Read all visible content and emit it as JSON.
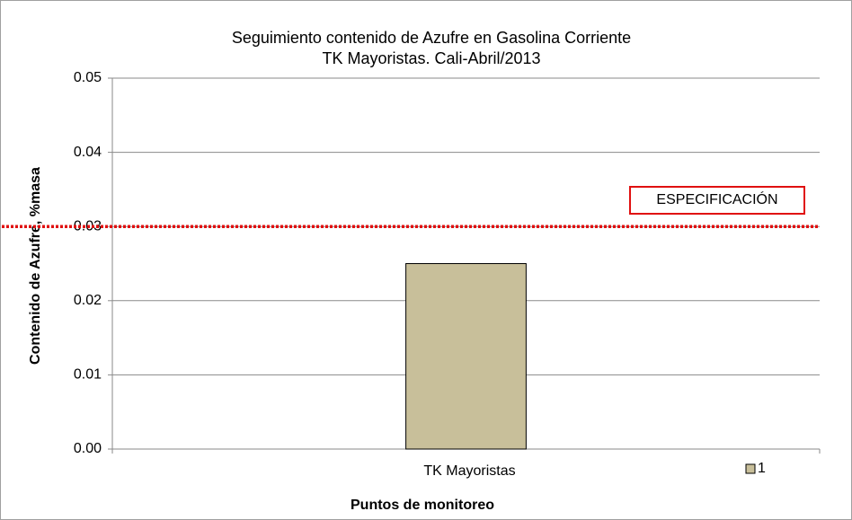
{
  "chart_data": {
    "type": "bar",
    "title": [
      "Seguimiento  contenido de Azufre en Gasolina Corriente",
      "TK  Mayoristas.  Cali-Abril/2013"
    ],
    "xlabel": "Puntos  de monitoreo",
    "ylabel": "Contenido  de Azufre, %masa",
    "categories": [
      "TK Mayoristas"
    ],
    "series": [
      {
        "name": "1",
        "color": "#c8bf9a",
        "values": [
          0.025
        ]
      }
    ],
    "ylim": [
      0,
      0.05
    ],
    "yticks": [
      {
        "value": 0,
        "label": "0.00"
      },
      0.01,
      0.02,
      0.03,
      0.04,
      0.05
    ],
    "grid": true,
    "reference_line": {
      "value": 0.03,
      "label": "ESPECIFICACIÓN",
      "color": "#e01010"
    }
  }
}
